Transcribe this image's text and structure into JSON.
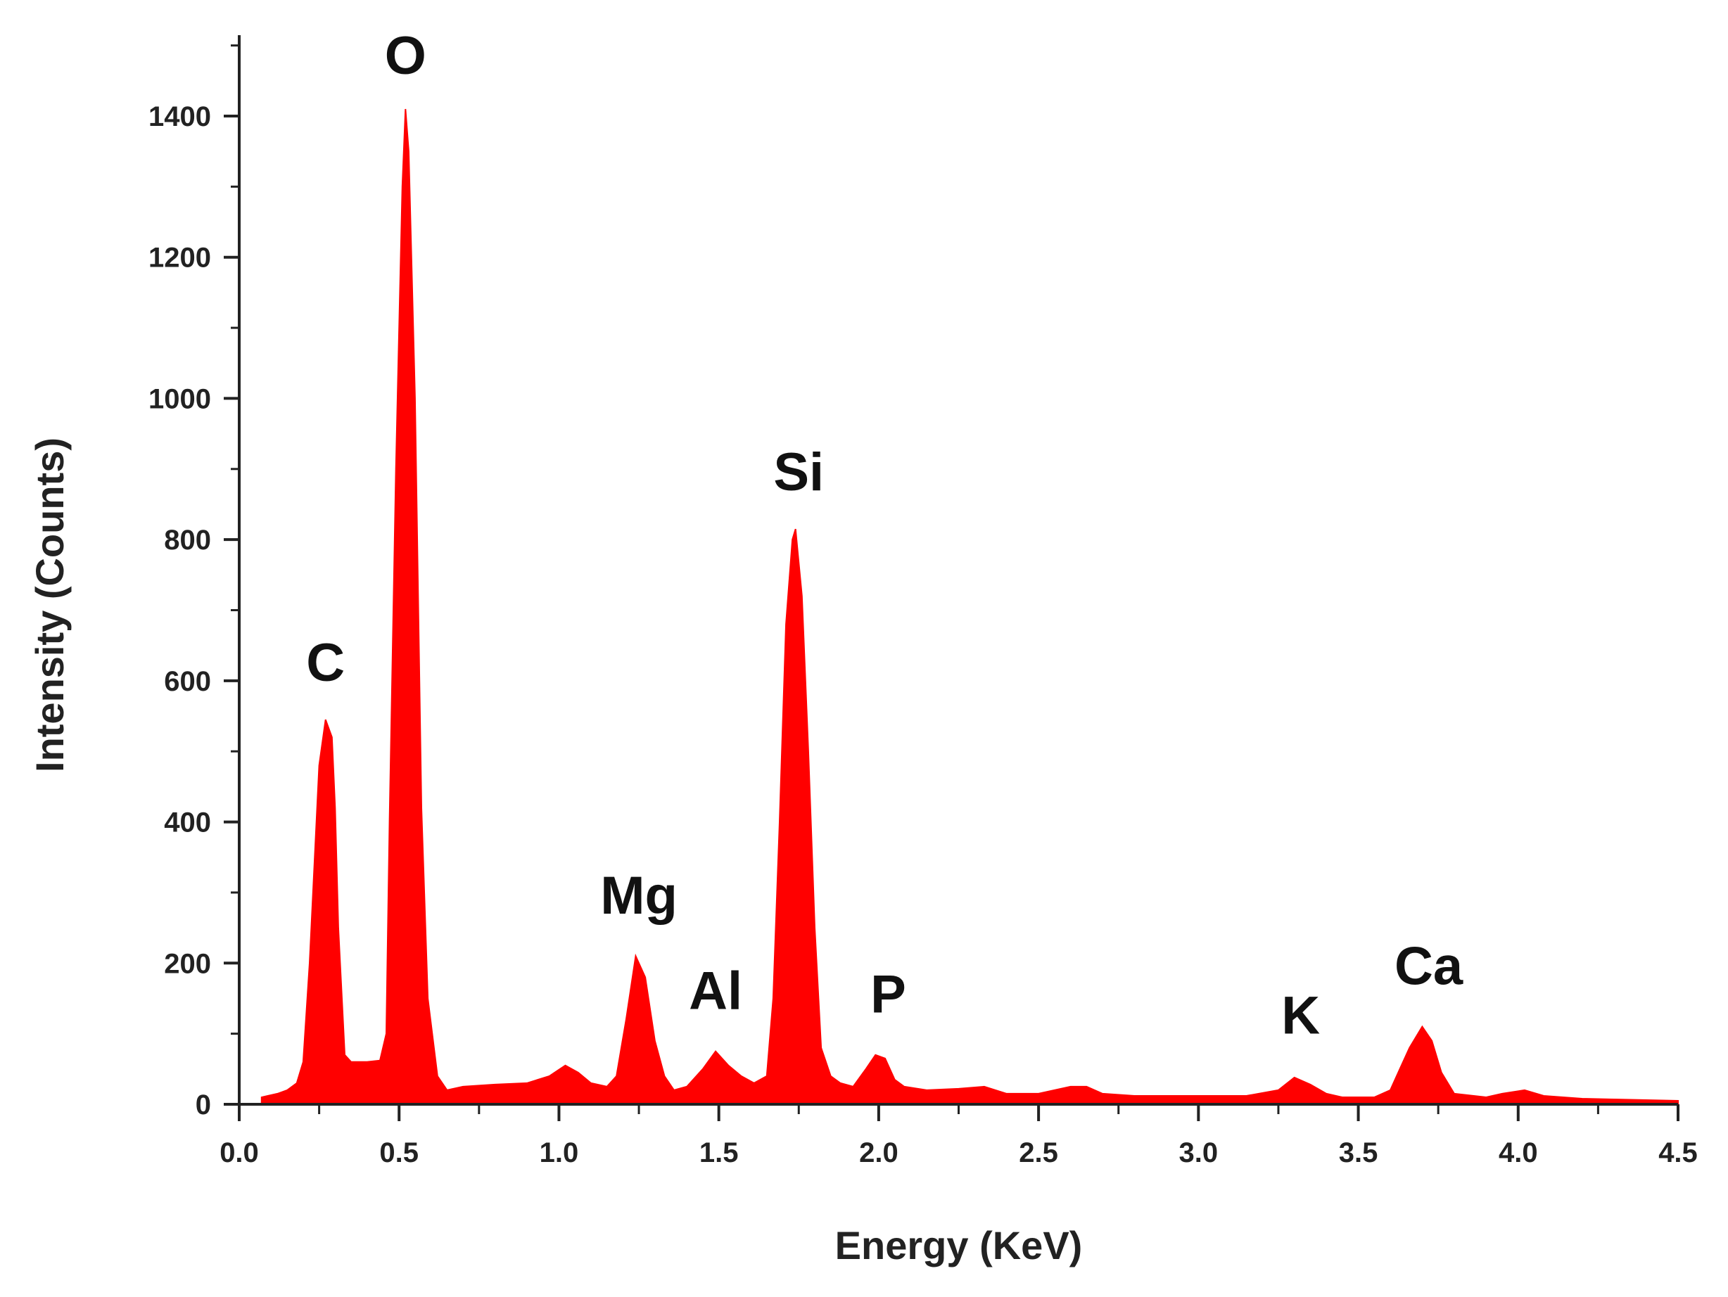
{
  "chart_data": {
    "type": "area",
    "xlabel": "Energy (KeV)",
    "ylabel": "Intensity (Counts)",
    "xlim": [
      0,
      4.5
    ],
    "ylim": [
      0,
      1500
    ],
    "x_ticks": [
      "0.0",
      "0.5",
      "1.0",
      "1.5",
      "2.0",
      "2.5",
      "3.0",
      "3.5",
      "4.0",
      "4.5"
    ],
    "y_ticks": [
      "0",
      "200",
      "400",
      "600",
      "800",
      "1000",
      "1200",
      "1400"
    ],
    "grid": false,
    "legend": "none",
    "series": [
      {
        "color": "#ff0000",
        "points": [
          [
            0.07,
            10
          ],
          [
            0.12,
            15
          ],
          [
            0.15,
            20
          ],
          [
            0.18,
            30
          ],
          [
            0.2,
            60
          ],
          [
            0.22,
            200
          ],
          [
            0.25,
            480
          ],
          [
            0.27,
            545
          ],
          [
            0.29,
            520
          ],
          [
            0.3,
            420
          ],
          [
            0.31,
            250
          ],
          [
            0.33,
            70
          ],
          [
            0.35,
            60
          ],
          [
            0.4,
            60
          ],
          [
            0.44,
            62
          ],
          [
            0.46,
            100
          ],
          [
            0.47,
            400
          ],
          [
            0.49,
            900
          ],
          [
            0.51,
            1300
          ],
          [
            0.52,
            1410
          ],
          [
            0.53,
            1350
          ],
          [
            0.55,
            1000
          ],
          [
            0.57,
            420
          ],
          [
            0.59,
            150
          ],
          [
            0.62,
            40
          ],
          [
            0.65,
            20
          ],
          [
            0.7,
            25
          ],
          [
            0.8,
            28
          ],
          [
            0.9,
            30
          ],
          [
            0.97,
            40
          ],
          [
            1.02,
            55
          ],
          [
            1.06,
            45
          ],
          [
            1.1,
            30
          ],
          [
            1.15,
            25
          ],
          [
            1.18,
            40
          ],
          [
            1.21,
            120
          ],
          [
            1.24,
            210
          ],
          [
            1.27,
            180
          ],
          [
            1.3,
            90
          ],
          [
            1.33,
            40
          ],
          [
            1.36,
            20
          ],
          [
            1.4,
            25
          ],
          [
            1.45,
            50
          ],
          [
            1.49,
            75
          ],
          [
            1.53,
            55
          ],
          [
            1.57,
            40
          ],
          [
            1.61,
            30
          ],
          [
            1.65,
            40
          ],
          [
            1.67,
            150
          ],
          [
            1.69,
            400
          ],
          [
            1.71,
            680
          ],
          [
            1.73,
            800
          ],
          [
            1.74,
            815
          ],
          [
            1.76,
            720
          ],
          [
            1.78,
            500
          ],
          [
            1.8,
            250
          ],
          [
            1.82,
            80
          ],
          [
            1.85,
            40
          ],
          [
            1.88,
            30
          ],
          [
            1.92,
            25
          ],
          [
            1.96,
            50
          ],
          [
            1.99,
            70
          ],
          [
            2.02,
            65
          ],
          [
            2.05,
            35
          ],
          [
            2.08,
            25
          ],
          [
            2.15,
            20
          ],
          [
            2.25,
            22
          ],
          [
            2.33,
            25
          ],
          [
            2.4,
            15
          ],
          [
            2.5,
            15
          ],
          [
            2.6,
            25
          ],
          [
            2.65,
            25
          ],
          [
            2.7,
            15
          ],
          [
            2.8,
            12
          ],
          [
            3.0,
            12
          ],
          [
            3.15,
            12
          ],
          [
            3.25,
            20
          ],
          [
            3.3,
            38
          ],
          [
            3.35,
            28
          ],
          [
            3.4,
            15
          ],
          [
            3.45,
            10
          ],
          [
            3.55,
            10
          ],
          [
            3.6,
            20
          ],
          [
            3.63,
            50
          ],
          [
            3.66,
            80
          ],
          [
            3.7,
            110
          ],
          [
            3.73,
            90
          ],
          [
            3.76,
            45
          ],
          [
            3.8,
            15
          ],
          [
            3.9,
            10
          ],
          [
            3.95,
            15
          ],
          [
            4.02,
            20
          ],
          [
            4.08,
            12
          ],
          [
            4.2,
            8
          ],
          [
            4.3,
            7
          ],
          [
            4.5,
            5
          ]
        ]
      }
    ],
    "annotations": [
      {
        "text": "C",
        "x": 0.27,
        "y": 600
      },
      {
        "text": "O",
        "x": 0.52,
        "y": 1460
      },
      {
        "text": "Mg",
        "x": 1.25,
        "y": 270
      },
      {
        "text": "Al",
        "x": 1.49,
        "y": 135
      },
      {
        "text": "Si",
        "x": 1.75,
        "y": 870
      },
      {
        "text": "P",
        "x": 2.03,
        "y": 130
      },
      {
        "text": "K",
        "x": 3.32,
        "y": 100
      },
      {
        "text": "Ca",
        "x": 3.72,
        "y": 170
      }
    ]
  }
}
